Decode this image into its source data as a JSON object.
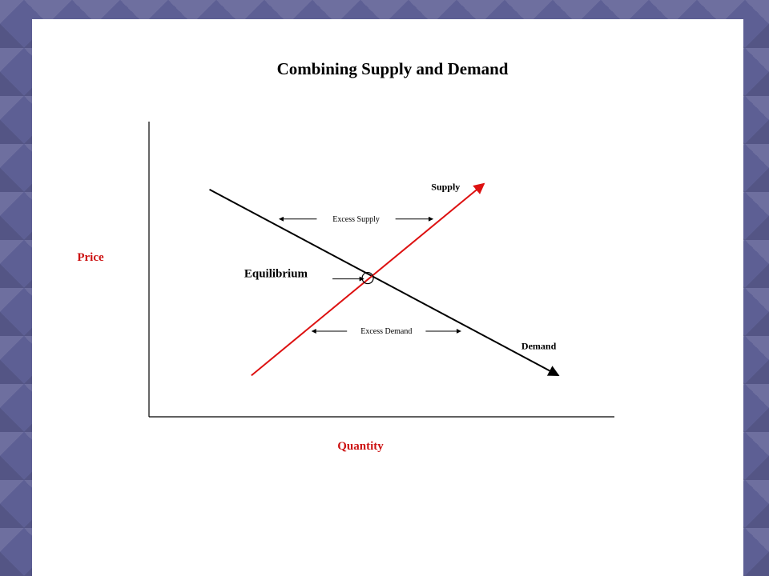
{
  "chart_data": {
    "type": "line",
    "title": "Combining Supply and Demand",
    "xlabel": "Quantity",
    "ylabel": "Price",
    "xlim": [
      0,
      10
    ],
    "ylim": [
      0,
      10
    ],
    "grid": false,
    "series": [
      {
        "name": "Demand",
        "color": "#000000",
        "arrow": "end",
        "x": [
          1.3,
          8.8
        ],
        "y": [
          7.7,
          1.4
        ]
      },
      {
        "name": "Supply",
        "color": "#dd1111",
        "arrow": "end",
        "x": [
          2.2,
          7.2
        ],
        "y": [
          1.4,
          7.9
        ]
      }
    ],
    "equilibrium": {
      "label": "Equilibrium",
      "x": 4.7,
      "y": 4.7
    },
    "annotations": [
      {
        "text": "Excess Supply",
        "y": 6.7,
        "x_from": 2.8,
        "x_to": 6.1
      },
      {
        "text": "Excess Demand",
        "y": 2.9,
        "x_from": 3.5,
        "x_to": 6.7
      }
    ]
  }
}
